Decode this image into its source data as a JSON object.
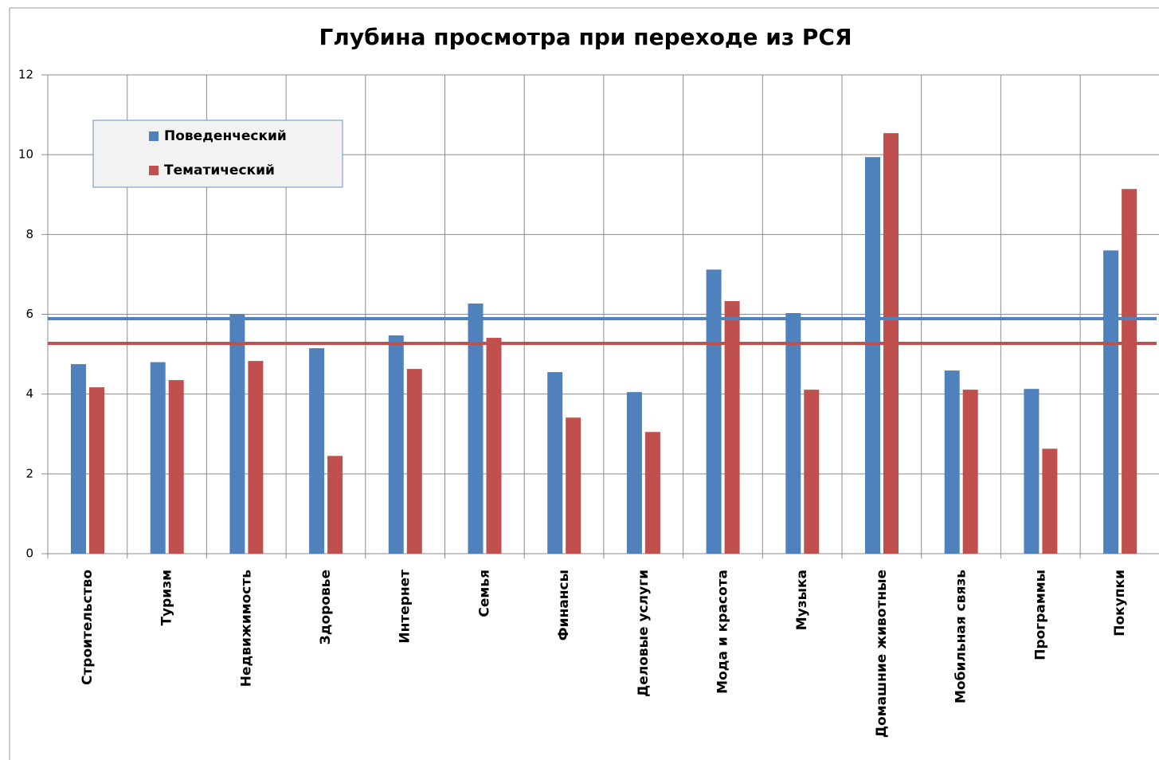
{
  "chart_data": {
    "type": "bar",
    "title": "Глубина просмотра при переходе из РСЯ",
    "categories": [
      "Строительство",
      "Туризм",
      "Недвижимость",
      "Здоровье",
      "Интернет",
      "Семья",
      "Финансы",
      "Деловые услуги",
      "Мода и красота",
      "Музыка",
      "Домашние животные",
      "Мобильная связь",
      "Программы",
      "Покупки"
    ],
    "series": [
      {
        "name": "Поведенческий",
        "color": "#4f81bd",
        "values": [
          4.75,
          4.8,
          6.0,
          5.15,
          5.47,
          6.27,
          4.55,
          4.05,
          7.12,
          6.03,
          9.94,
          4.59,
          4.13,
          7.6
        ]
      },
      {
        "name": "Тематический",
        "color": "#c0504d",
        "values": [
          4.17,
          4.35,
          4.83,
          2.45,
          4.63,
          5.41,
          3.41,
          3.05,
          6.33,
          4.11,
          10.54,
          4.11,
          2.63,
          9.14
        ]
      }
    ],
    "hlines": [
      {
        "value": 5.89,
        "color": "#4f81bd"
      },
      {
        "value": 5.27,
        "color": "#c0504d"
      }
    ],
    "ylim": [
      0,
      12
    ],
    "yticks": [
      0,
      2,
      4,
      6,
      8,
      10,
      12
    ],
    "grid": true,
    "legend": "upper left"
  }
}
